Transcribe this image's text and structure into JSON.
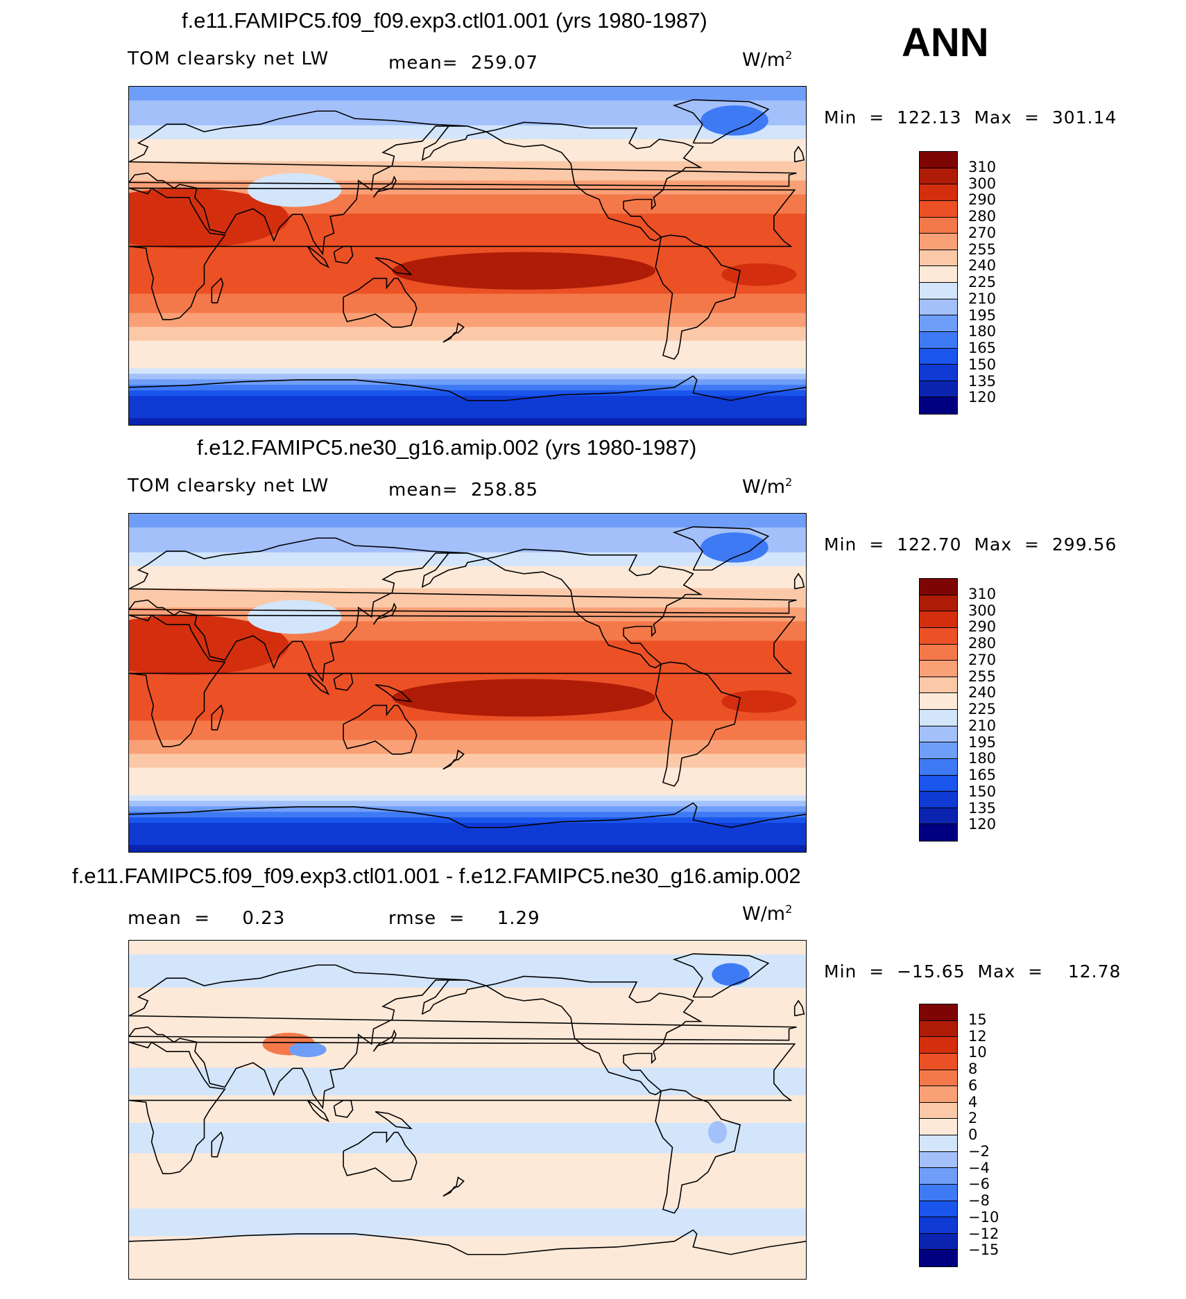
{
  "season": "ANN",
  "colors": {
    "abs_levels": [
      "#000080",
      "#0a24b0",
      "#0f3ad4",
      "#1a55ec",
      "#3f7af5",
      "#6f9ef8",
      "#a3c0fa",
      "#d2e5fb",
      "#fde9d8",
      "#fbc9a8",
      "#f9a077",
      "#f4794a",
      "#ec5126",
      "#d32f0e",
      "#ae1c07",
      "#7d0504"
    ],
    "diff_levels": [
      "#000080",
      "#0a24b0",
      "#0f3ad4",
      "#1a55ec",
      "#3f7af5",
      "#6f9ef8",
      "#a3c0fa",
      "#d2e5fb",
      "#fde9d8",
      "#fbc9a8",
      "#f9a077",
      "#f4794a",
      "#ec5126",
      "#d32f0e",
      "#ae1c07",
      "#7d0504"
    ],
    "coast": "#000000"
  },
  "panels": [
    {
      "title": "f.e11.FAMIPC5.f09_f09.exp3.ctl01.001 (yrs 1980-1987)",
      "left_label": "TOM clearsky net LW",
      "mean_text": "mean=  259.07",
      "units_base": "W/m",
      "units_sup": "2",
      "minmax": "Min  =  122.13  Max  =  301.14"
    },
    {
      "title": "f.e12.FAMIPC5.ne30_g16.amip.002 (yrs 1980-1987)",
      "left_label": "TOM clearsky net LW",
      "mean_text": "mean=  258.85",
      "units_base": "W/m",
      "units_sup": "2",
      "minmax": "Min  =  122.70  Max  =  299.56"
    },
    {
      "title": "f.e11.FAMIPC5.f09_f09.exp3.ctl01.001 - f.e12.FAMIPC5.ne30_g16.amip.002",
      "left_label": "mean  =     0.23",
      "mean_text": "rmse  =     1.29",
      "units_base": "W/m",
      "units_sup": "2",
      "minmax": "Min  =  −15.65  Max  =    12.78"
    }
  ],
  "chart_data": [
    {
      "type": "heatmap",
      "title": "f.e11.FAMIPC5.f09_f09.exp3.ctl01.001 (yrs 1980-1987)",
      "variable": "TOM clearsky net LW",
      "units": "W/m2",
      "mean": 259.07,
      "min": 122.13,
      "max": 301.14,
      "colorbar_levels": [
        120,
        135,
        150,
        165,
        180,
        195,
        210,
        225,
        240,
        255,
        270,
        280,
        290,
        300,
        310
      ],
      "colorbar_labels": [
        "310",
        "300",
        "290",
        "280",
        "270",
        "255",
        "240",
        "225",
        "210",
        "195",
        "180",
        "165",
        "150",
        "135",
        "120"
      ],
      "zonal_profile": {
        "lat": [
          90,
          75,
          60,
          45,
          30,
          15,
          0,
          -15,
          -30,
          -45,
          -60,
          -75,
          -90
        ],
        "value": [
          190,
          200,
          230,
          245,
          275,
          285,
          280,
          285,
          270,
          240,
          225,
          150,
          130
        ]
      }
    },
    {
      "type": "heatmap",
      "title": "f.e12.FAMIPC5.ne30_g16.amip.002 (yrs 1980-1987)",
      "variable": "TOM clearsky net LW",
      "units": "W/m2",
      "mean": 258.85,
      "min": 122.7,
      "max": 299.56,
      "colorbar_levels": [
        120,
        135,
        150,
        165,
        180,
        195,
        210,
        225,
        240,
        255,
        270,
        280,
        290,
        300,
        310
      ],
      "colorbar_labels": [
        "310",
        "300",
        "290",
        "280",
        "270",
        "255",
        "240",
        "225",
        "210",
        "195",
        "180",
        "165",
        "150",
        "135",
        "120"
      ],
      "zonal_profile": {
        "lat": [
          90,
          75,
          60,
          45,
          30,
          15,
          0,
          -15,
          -30,
          -45,
          -60,
          -75,
          -90
        ],
        "value": [
          190,
          200,
          230,
          245,
          275,
          285,
          280,
          285,
          270,
          240,
          225,
          150,
          130
        ]
      }
    },
    {
      "type": "heatmap",
      "title": "f.e11.FAMIPC5.f09_f09.exp3.ctl01.001 - f.e12.FAMIPC5.ne30_g16.amip.002",
      "units": "W/m2",
      "mean": 0.23,
      "rmse": 1.29,
      "min": -15.65,
      "max": 12.78,
      "colorbar_levels": [
        -15,
        -12,
        -10,
        -8,
        -6,
        -4,
        -2,
        0,
        2,
        4,
        6,
        8,
        10,
        12,
        15
      ],
      "colorbar_labels": [
        "15",
        "12",
        "10",
        "8",
        "6",
        "4",
        "2",
        "0",
        "−2",
        "−4",
        "−6",
        "−8",
        "−10",
        "−12",
        "−15"
      ],
      "zonal_profile": {
        "lat": [
          90,
          75,
          60,
          45,
          30,
          15,
          0,
          -15,
          -30,
          -45,
          -60,
          -75,
          -90
        ],
        "value": [
          0.5,
          -0.5,
          0.3,
          0.5,
          0.5,
          -0.5,
          0.5,
          -0.5,
          0.5,
          0.5,
          -0.5,
          0.5,
          0.3
        ]
      }
    }
  ]
}
